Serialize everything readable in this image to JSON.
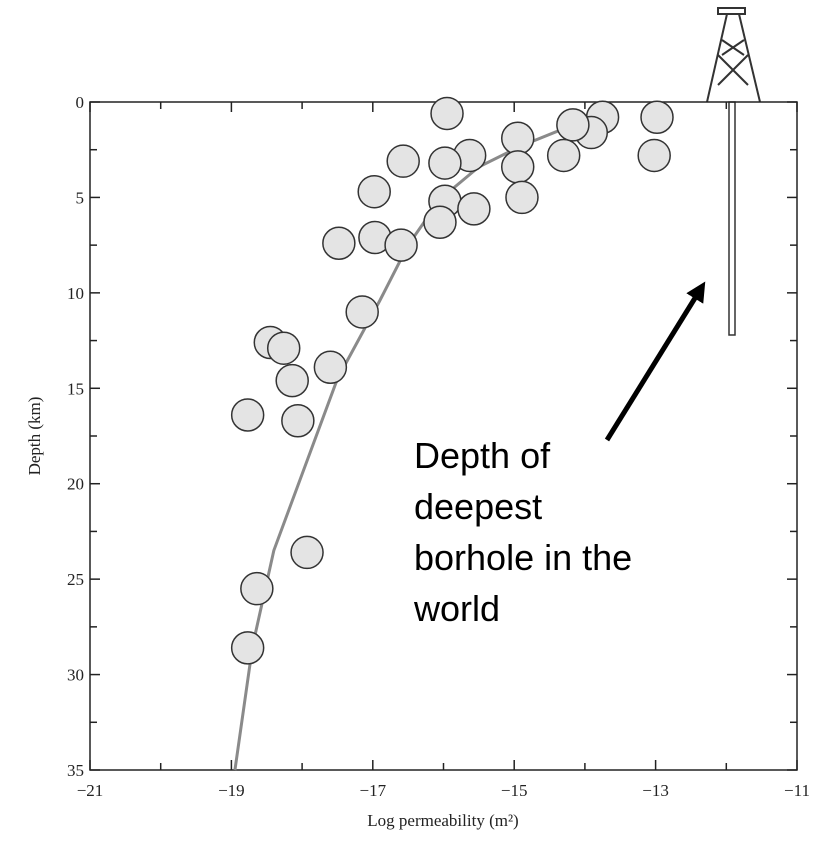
{
  "chart_data": {
    "type": "scatter",
    "x_label": "Log permeability (m²)",
    "y_label": "Depth (km)",
    "xlim": [
      -21,
      -11
    ],
    "ylim": [
      0,
      35
    ],
    "invert_y": true,
    "xticks": [
      {
        "value": -21,
        "label": "−21"
      },
      {
        "value": -19,
        "label": "−19"
      },
      {
        "value": -17,
        "label": "−17"
      },
      {
        "value": -15,
        "label": "−15"
      },
      {
        "value": -13,
        "label": "−13"
      },
      {
        "value": -11,
        "label": "−11"
      }
    ],
    "yticks": [
      0,
      5,
      10,
      15,
      20,
      25,
      30,
      35
    ],
    "points": {
      "color": "#e4e4e4",
      "x": [
        -15.95,
        -12.98,
        -13.75,
        -13.91,
        -14.17,
        -14.95,
        -14.3,
        -13.02,
        -15.63,
        -15.98,
        -16.57,
        -14.95,
        -16.98,
        -15.98,
        -15.57,
        -14.89,
        -16.05,
        -16.97,
        -16.6,
        -17.48,
        -17.15,
        -18.45,
        -18.26,
        -17.6,
        -18.14,
        -18.77,
        -18.06,
        -17.93,
        -18.64,
        -18.77
      ],
      "y": [
        0.6,
        0.8,
        0.8,
        1.6,
        1.2,
        1.9,
        2.8,
        2.8,
        2.8,
        3.2,
        3.1,
        3.4,
        4.7,
        5.2,
        5.6,
        5.0,
        6.3,
        7.1,
        7.5,
        7.4,
        11.0,
        12.6,
        12.9,
        13.9,
        14.6,
        16.4,
        16.7,
        23.6,
        25.5,
        28.6
      ]
    },
    "curve": {
      "color": "#8a8a8a",
      "x": [
        -18.95,
        -18.7,
        -18.4,
        -18.03,
        -17.5,
        -16.9,
        -16.5,
        -16.05,
        -15.5,
        -14.9,
        -14.3,
        -13.85
      ],
      "y": [
        35,
        28.5,
        23.5,
        19.8,
        14.5,
        10.4,
        7.5,
        5.1,
        3.4,
        2.3,
        1.4,
        0.9
      ]
    },
    "annotation": [
      "Depth of",
      "deepest",
      "borhole in the",
      "world"
    ]
  }
}
